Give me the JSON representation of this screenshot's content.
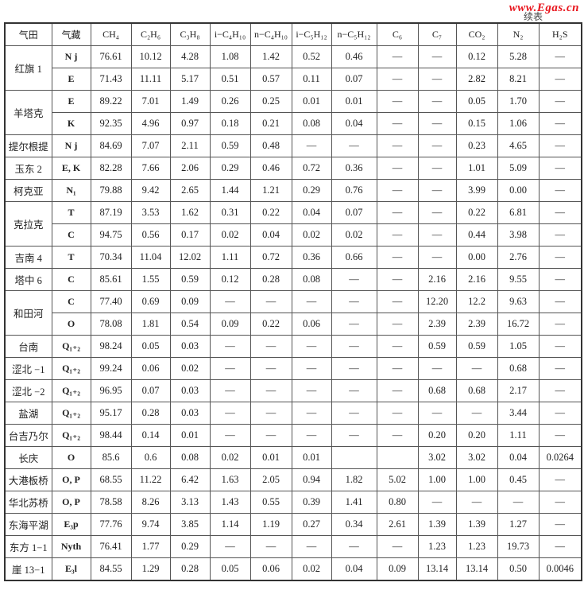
{
  "watermark": "www.Egas.cn",
  "continued_label": "续表",
  "headers": [
    "气田",
    "气藏",
    "CH₄",
    "C₂H₆",
    "C₃H₈",
    "i−C₄H₁₀",
    "n−C₄H₁₀",
    "i−C₅H₁₂",
    "n−C₅H₁₂",
    "C₆",
    "C₇",
    "CO₂",
    "N₂",
    "H₂S"
  ],
  "fields": [
    {
      "name": "红旗 1",
      "rows": [
        {
          "reservoir": "N j",
          "values": [
            "76.61",
            "10.12",
            "4.28",
            "1.08",
            "1.42",
            "0.52",
            "0.46",
            "—",
            "—",
            "0.12",
            "5.28",
            "—"
          ]
        },
        {
          "reservoir": "E",
          "values": [
            "71.43",
            "11.11",
            "5.17",
            "0.51",
            "0.57",
            "0.11",
            "0.07",
            "—",
            "—",
            "2.82",
            "8.21",
            "—"
          ]
        }
      ]
    },
    {
      "name": "羊塔克",
      "rows": [
        {
          "reservoir": "E",
          "values": [
            "89.22",
            "7.01",
            "1.49",
            "0.26",
            "0.25",
            "0.01",
            "0.01",
            "—",
            "—",
            "0.05",
            "1.70",
            "—"
          ]
        },
        {
          "reservoir": "K",
          "values": [
            "92.35",
            "4.96",
            "0.97",
            "0.18",
            "0.21",
            "0.08",
            "0.04",
            "—",
            "—",
            "0.15",
            "1.06",
            "—"
          ]
        }
      ]
    },
    {
      "name": "提尔根提",
      "rows": [
        {
          "reservoir": "N j",
          "values": [
            "84.69",
            "7.07",
            "2.11",
            "0.59",
            "0.48",
            "—",
            "—",
            "—",
            "—",
            "0.23",
            "4.65",
            "—"
          ]
        }
      ]
    },
    {
      "name": "玉东 2",
      "rows": [
        {
          "reservoir": "E, K",
          "values": [
            "82.28",
            "7.66",
            "2.06",
            "0.29",
            "0.46",
            "0.72",
            "0.36",
            "—",
            "—",
            "1.01",
            "5.09",
            "—"
          ]
        }
      ]
    },
    {
      "name": "柯克亚",
      "rows": [
        {
          "reservoir": "N₁",
          "values": [
            "79.88",
            "9.42",
            "2.65",
            "1.44",
            "1.21",
            "0.29",
            "0.76",
            "—",
            "—",
            "3.99",
            "0.00",
            "—"
          ]
        }
      ]
    },
    {
      "name": "克拉克",
      "rows": [
        {
          "reservoir": "T",
          "values": [
            "87.19",
            "3.53",
            "1.62",
            "0.31",
            "0.22",
            "0.04",
            "0.07",
            "—",
            "—",
            "0.22",
            "6.81",
            "—"
          ]
        },
        {
          "reservoir": "C",
          "values": [
            "94.75",
            "0.56",
            "0.17",
            "0.02",
            "0.04",
            "0.02",
            "0.02",
            "—",
            "—",
            "0.44",
            "3.98",
            "—"
          ]
        }
      ]
    },
    {
      "name": "吉南 4",
      "rows": [
        {
          "reservoir": "T",
          "values": [
            "70.34",
            "11.04",
            "12.02",
            "1.11",
            "0.72",
            "0.36",
            "0.66",
            "—",
            "—",
            "0.00",
            "2.76",
            "—"
          ]
        }
      ]
    },
    {
      "name": "塔中 6",
      "rows": [
        {
          "reservoir": "C",
          "values": [
            "85.61",
            "1.55",
            "0.59",
            "0.12",
            "0.28",
            "0.08",
            "—",
            "—",
            "2.16",
            "2.16",
            "9.55",
            "—"
          ]
        }
      ]
    },
    {
      "name": "和田河",
      "rows": [
        {
          "reservoir": "C",
          "values": [
            "77.40",
            "0.69",
            "0.09",
            "—",
            "—",
            "—",
            "—",
            "—",
            "12.20",
            "12.2",
            "9.63",
            "—"
          ]
        },
        {
          "reservoir": "O",
          "values": [
            "78.08",
            "1.81",
            "0.54",
            "0.09",
            "0.22",
            "0.06",
            "—",
            "—",
            "2.39",
            "2.39",
            "16.72",
            "—"
          ]
        }
      ]
    },
    {
      "name": "台南",
      "rows": [
        {
          "reservoir": "Q₁₊₂",
          "values": [
            "98.24",
            "0.05",
            "0.03",
            "—",
            "—",
            "—",
            "—",
            "—",
            "0.59",
            "0.59",
            "1.05",
            "—"
          ]
        }
      ]
    },
    {
      "name": "涩北 −1",
      "rows": [
        {
          "reservoir": "Q₁₊₂",
          "values": [
            "99.24",
            "0.06",
            "0.02",
            "—",
            "—",
            "—",
            "—",
            "—",
            "—",
            "—",
            "0.68",
            "—"
          ]
        }
      ]
    },
    {
      "name": "涩北 −2",
      "rows": [
        {
          "reservoir": "Q₁₊₂",
          "values": [
            "96.95",
            "0.07",
            "0.03",
            "—",
            "—",
            "—",
            "—",
            "—",
            "0.68",
            "0.68",
            "2.17",
            "—"
          ]
        }
      ]
    },
    {
      "name": "盐湖",
      "rows": [
        {
          "reservoir": "Q₁₊₂",
          "values": [
            "95.17",
            "0.28",
            "0.03",
            "—",
            "—",
            "—",
            "—",
            "—",
            "—",
            "—",
            "3.44",
            "—"
          ]
        }
      ]
    },
    {
      "name": "台吉乃尔",
      "rows": [
        {
          "reservoir": "Q₁₊₂",
          "values": [
            "98.44",
            "0.14",
            "0.01",
            "—",
            "—",
            "—",
            "—",
            "—",
            "0.20",
            "0.20",
            "1.11",
            "—"
          ]
        }
      ]
    },
    {
      "name": "长庆",
      "rows": [
        {
          "reservoir": "O",
          "values": [
            "85.6",
            "0.6",
            "0.08",
            "0.02",
            "0.01",
            "0.01",
            "",
            "",
            "3.02",
            "3.02",
            "0.04",
            "0.0264"
          ]
        }
      ]
    },
    {
      "name": "大港板桥",
      "rows": [
        {
          "reservoir": "O, P",
          "values": [
            "68.55",
            "11.22",
            "6.42",
            "1.63",
            "2.05",
            "0.94",
            "1.82",
            "5.02",
            "1.00",
            "1.00",
            "0.45",
            "—"
          ]
        }
      ]
    },
    {
      "name": "华北苏桥",
      "rows": [
        {
          "reservoir": "O, P",
          "values": [
            "78.58",
            "8.26",
            "3.13",
            "1.43",
            "0.55",
            "0.39",
            "1.41",
            "0.80",
            "—",
            "—",
            "—",
            "—"
          ]
        }
      ]
    },
    {
      "name": "东海平湖",
      "rows": [
        {
          "reservoir": "E₃p",
          "values": [
            "77.76",
            "9.74",
            "3.85",
            "1.14",
            "1.19",
            "0.27",
            "0.34",
            "2.61",
            "1.39",
            "1.39",
            "1.27",
            "—"
          ]
        }
      ]
    },
    {
      "name": "东方 1−1",
      "rows": [
        {
          "reservoir": "Nyth",
          "values": [
            "76.41",
            "1.77",
            "0.29",
            "—",
            "—",
            "—",
            "—",
            "—",
            "1.23",
            "1.23",
            "19.73",
            "—"
          ]
        }
      ]
    },
    {
      "name": "崖 13−1",
      "rows": [
        {
          "reservoir": "E₃l",
          "values": [
            "84.55",
            "1.29",
            "0.28",
            "0.05",
            "0.06",
            "0.02",
            "0.04",
            "0.09",
            "13.14",
            "13.14",
            "0.50",
            "0.0046"
          ]
        }
      ]
    }
  ]
}
